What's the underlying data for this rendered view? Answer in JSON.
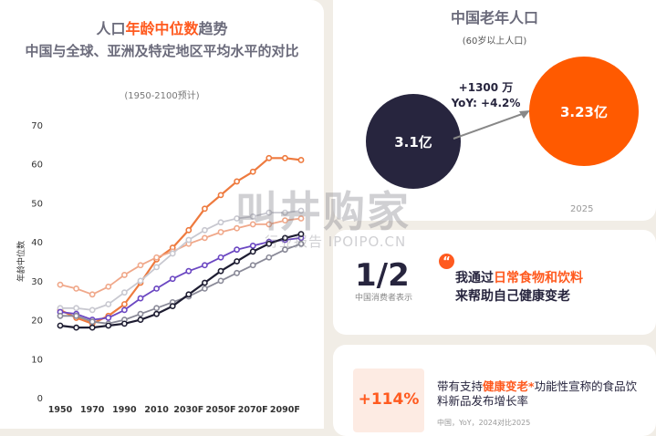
{
  "left": {
    "title_pre": "人口",
    "title_hl": "年龄中位数",
    "title_post": "趋势",
    "subtitle": "中国与全球、亚洲及特定地区平均水平的对比",
    "range": "(1950-2100预计)"
  },
  "chart_data": {
    "type": "line",
    "ylabel": "年龄中位数",
    "ylim": [
      0,
      70
    ],
    "yticks": [
      0,
      10,
      20,
      30,
      40,
      50,
      60,
      70
    ],
    "x_tick_labels": [
      "1950",
      "1970",
      "1990",
      "2010",
      "2030F",
      "2050F",
      "2070F",
      "2090F"
    ],
    "x_tick_index": [
      0,
      2,
      4,
      6,
      8,
      10,
      12,
      14
    ],
    "x": [
      "1950",
      "1960",
      "1970",
      "1980",
      "1990",
      "2000",
      "2010",
      "2020",
      "2030F",
      "2040F",
      "2050F",
      "2060F",
      "2070F",
      "2080F",
      "2090F",
      "2100F"
    ],
    "series": [
      {
        "color": "#ee7a3e",
        "width": 2.2,
        "values": [
          22.5,
          20.5,
          19.0,
          21.0,
          24.0,
          29.5,
          35.5,
          38.5,
          43.0,
          48.5,
          52.0,
          55.5,
          58.0,
          61.5,
          61.5,
          61.0
        ]
      },
      {
        "color": "#f0a88a",
        "width": 1.8,
        "values": [
          29.0,
          28.0,
          26.5,
          28.5,
          31.5,
          34.0,
          36.0,
          37.5,
          39.5,
          41.0,
          42.5,
          43.5,
          44.5,
          44.5,
          45.5,
          46.0
        ]
      },
      {
        "color": "#c8c8d0",
        "width": 1.8,
        "values": [
          23.0,
          23.0,
          22.5,
          24.0,
          27.0,
          30.0,
          33.5,
          37.0,
          40.5,
          43.0,
          45.0,
          46.0,
          46.5,
          47.5,
          47.5,
          48.0
        ]
      },
      {
        "color": "#6b47c2",
        "width": 1.8,
        "values": [
          22.0,
          21.5,
          20.0,
          20.5,
          22.5,
          25.5,
          28.0,
          30.5,
          32.5,
          34.0,
          36.0,
          38.0,
          39.0,
          40.0,
          40.5,
          41.0
        ]
      },
      {
        "color": "#8a8a98",
        "width": 1.8,
        "values": [
          21.0,
          21.0,
          19.5,
          19.0,
          20.0,
          21.5,
          23.0,
          24.5,
          26.0,
          28.0,
          30.0,
          32.0,
          34.0,
          36.0,
          38.0,
          39.5
        ]
      },
      {
        "color": "#1e1d32",
        "width": 2.2,
        "values": [
          18.5,
          18.0,
          18.0,
          18.5,
          19.0,
          20.0,
          21.5,
          23.5,
          26.5,
          29.5,
          32.5,
          35.0,
          37.5,
          39.5,
          41.0,
          42.0
        ]
      }
    ]
  },
  "right_top": {
    "title": "中国老年人口",
    "subtitle": "(60岁以上人口)",
    "value_2024": "3.1亿",
    "value_2025": "3.23亿",
    "growth_1": "+1300 万",
    "growth_2": "YoY: +4.2%",
    "year_2025": "2025",
    "bubble_colors": {
      "y2024": "#27253e",
      "y2025": "#ff5a00"
    }
  },
  "right_mid": {
    "fraction": "1/2",
    "fraction_caption": "中国消费者表示",
    "quote_mark": "“",
    "line1_pre": "我通过",
    "line1_hl": "日常食物和饮料",
    "line2": "来帮助自己健康变老"
  },
  "right_bot": {
    "pct": "+114%",
    "text_pre": "带有支持",
    "text_hl": "健康变老*",
    "text_post": "功能性宣称的食品饮料新品发布增长率",
    "source": "中国，YoY，2024对比2025"
  },
  "watermark": {
    "big": "叫井购家",
    "small": "行业报告 IPOIPO.CN"
  },
  "accent_color": "#ff5a1f"
}
